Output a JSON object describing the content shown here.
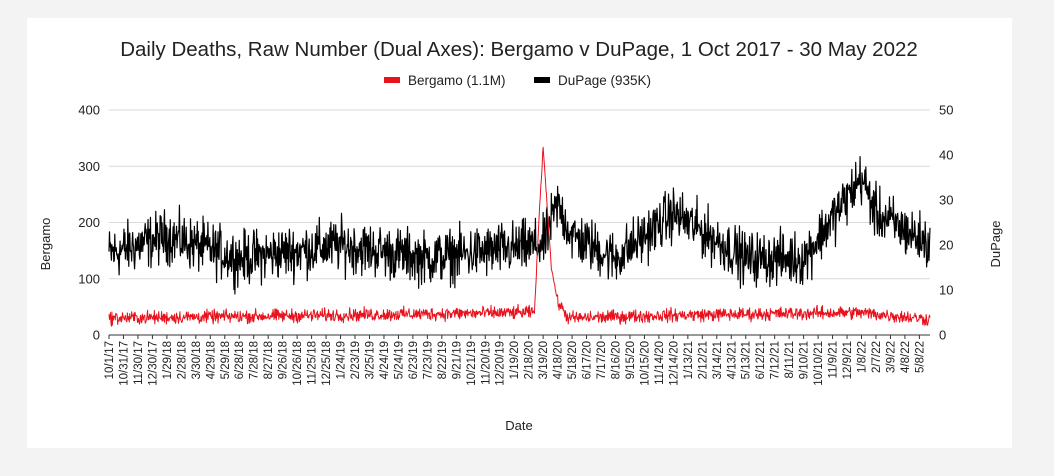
{
  "chart_data": {
    "type": "line",
    "title": "Daily Deaths, Raw Number (Dual Axes): Bergamo v DuPage, 1 Oct 2017 - 30 May 2022",
    "xlabel": "Date",
    "ylabel_left": "Bergamo",
    "ylabel_right": "DuPage",
    "ylim_left": [
      0,
      400
    ],
    "ylim_right": [
      0,
      50
    ],
    "yticks_left": [
      "0",
      "100",
      "200",
      "300",
      "400"
    ],
    "yticks_right": [
      "0",
      "10",
      "20",
      "30",
      "40",
      "50"
    ],
    "grid": "horizontal",
    "legend_position": "top",
    "x_ticks": [
      "10/1/17",
      "10/31/17",
      "11/30/17",
      "12/30/17",
      "1/29/18",
      "2/28/18",
      "3/30/18",
      "4/29/18",
      "5/29/18",
      "6/28/18",
      "7/28/18",
      "8/27/18",
      "9/26/18",
      "10/26/18",
      "11/25/18",
      "12/25/18",
      "1/24/19",
      "2/23/19",
      "3/25/19",
      "4/24/19",
      "5/24/19",
      "6/23/19",
      "7/23/19",
      "8/22/19",
      "9/21/19",
      "10/21/19",
      "11/20/19",
      "12/20/19",
      "1/19/20",
      "2/18/20",
      "3/19/20",
      "4/18/20",
      "5/18/20",
      "6/17/20",
      "7/17/20",
      "8/16/20",
      "9/15/20",
      "10/15/20",
      "11/14/20",
      "12/14/20",
      "1/13/21",
      "2/12/21",
      "3/14/21",
      "4/13/21",
      "5/13/21",
      "6/12/21",
      "7/12/21",
      "8/11/21",
      "9/10/21",
      "10/10/21",
      "11/9/21",
      "12/9/21",
      "1/8/22",
      "2/7/22",
      "3/9/22",
      "4/8/22",
      "5/8/22"
    ],
    "series": [
      {
        "name": "Bergamo (1.1M)",
        "axis": "left",
        "color": "#e8121d",
        "baseline": 30,
        "noise": 10,
        "approx_points": [
          [
            "10/1/17",
            30
          ],
          [
            "3/1/20",
            40
          ],
          [
            "3/10/20",
            200
          ],
          [
            "3/19/20",
            335
          ],
          [
            "3/25/20",
            260
          ],
          [
            "4/5/20",
            120
          ],
          [
            "4/18/20",
            60
          ],
          [
            "5/10/20",
            30
          ],
          [
            "12/1/20",
            35
          ],
          [
            "1/1/22",
            40
          ],
          [
            "5/30/22",
            28
          ]
        ]
      },
      {
        "name": "DuPage (935K)",
        "axis": "right",
        "color": "#000000",
        "baseline": 18,
        "noise": 5,
        "approx_points": [
          [
            "10/1/17",
            18
          ],
          [
            "1/29/18",
            22
          ],
          [
            "6/28/18",
            17
          ],
          [
            "1/24/19",
            20
          ],
          [
            "7/23/19",
            17
          ],
          [
            "3/19/20",
            20
          ],
          [
            "4/18/20",
            29
          ],
          [
            "5/18/20",
            22
          ],
          [
            "8/16/20",
            17
          ],
          [
            "12/14/20",
            27
          ],
          [
            "5/13/21",
            17
          ],
          [
            "9/10/21",
            17
          ],
          [
            "1/8/22",
            35
          ],
          [
            "2/7/22",
            27
          ],
          [
            "5/30/22",
            20
          ]
        ]
      }
    ]
  },
  "legend": {
    "bergamo_label": "Bergamo (1.1M)",
    "dupage_label": "DuPage (935K)"
  }
}
